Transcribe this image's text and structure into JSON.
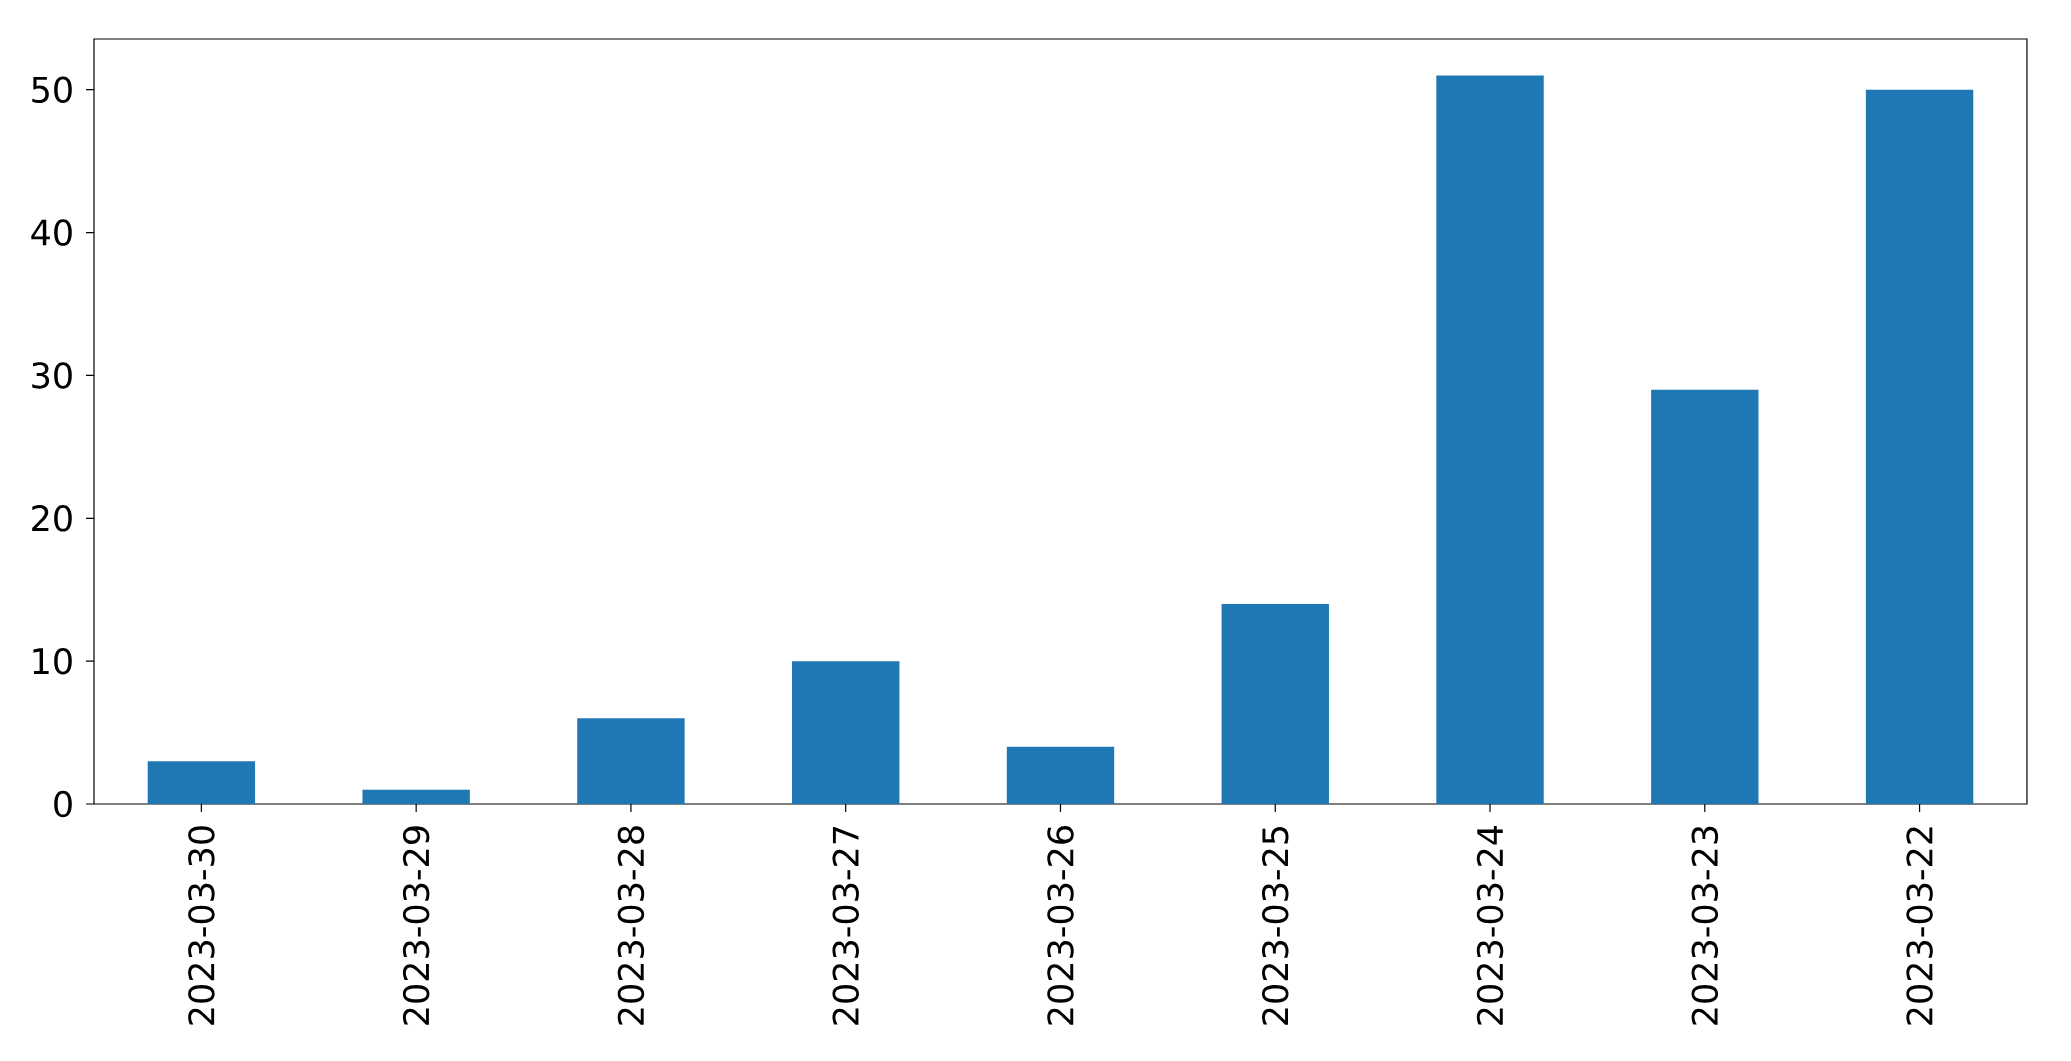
{
  "chart_data": {
    "type": "bar",
    "categories": [
      "2023-03-30",
      "2023-03-29",
      "2023-03-28",
      "2023-03-27",
      "2023-03-26",
      "2023-03-25",
      "2023-03-24",
      "2023-03-23",
      "2023-03-22"
    ],
    "values": [
      3,
      1,
      6,
      10,
      4,
      14,
      51,
      29,
      50
    ],
    "color": "#1f77b4",
    "ylim": [
      0,
      53.55
    ],
    "yticks": [
      0,
      10,
      20,
      30,
      40,
      50
    ]
  }
}
